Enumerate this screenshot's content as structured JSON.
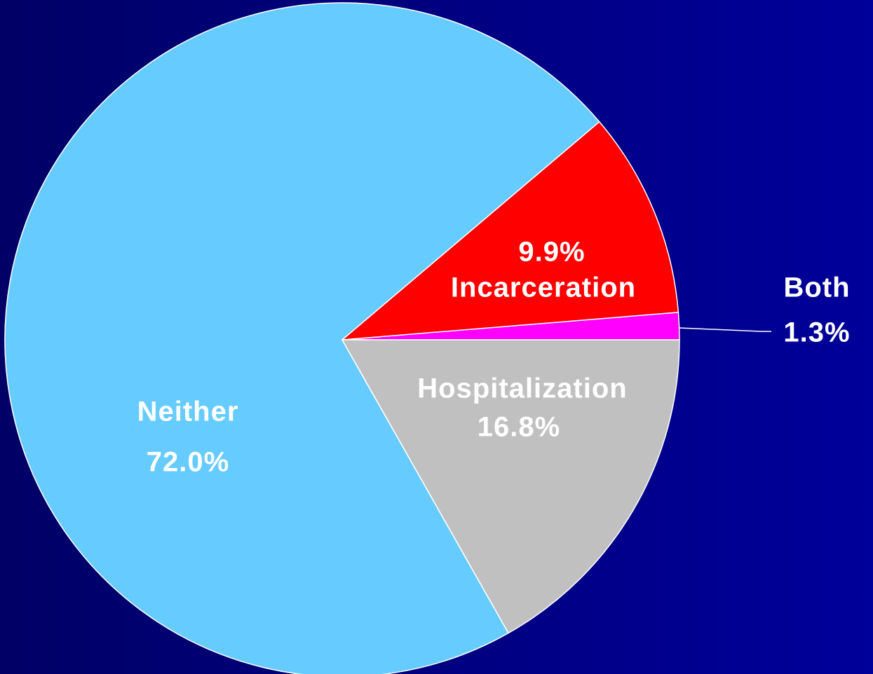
{
  "chart_data": {
    "type": "pie",
    "categories": [
      "Both",
      "Incarceration",
      "Neither",
      "Hospitalization"
    ],
    "values": [
      1.3,
      9.9,
      72.0,
      16.8
    ],
    "value_labels": [
      "1.3%",
      "9.9%",
      "72.0%",
      "16.8%"
    ],
    "colors": [
      "#ff00ff",
      "#ff0000",
      "#66ccff",
      "#c0c0c0"
    ]
  }
}
